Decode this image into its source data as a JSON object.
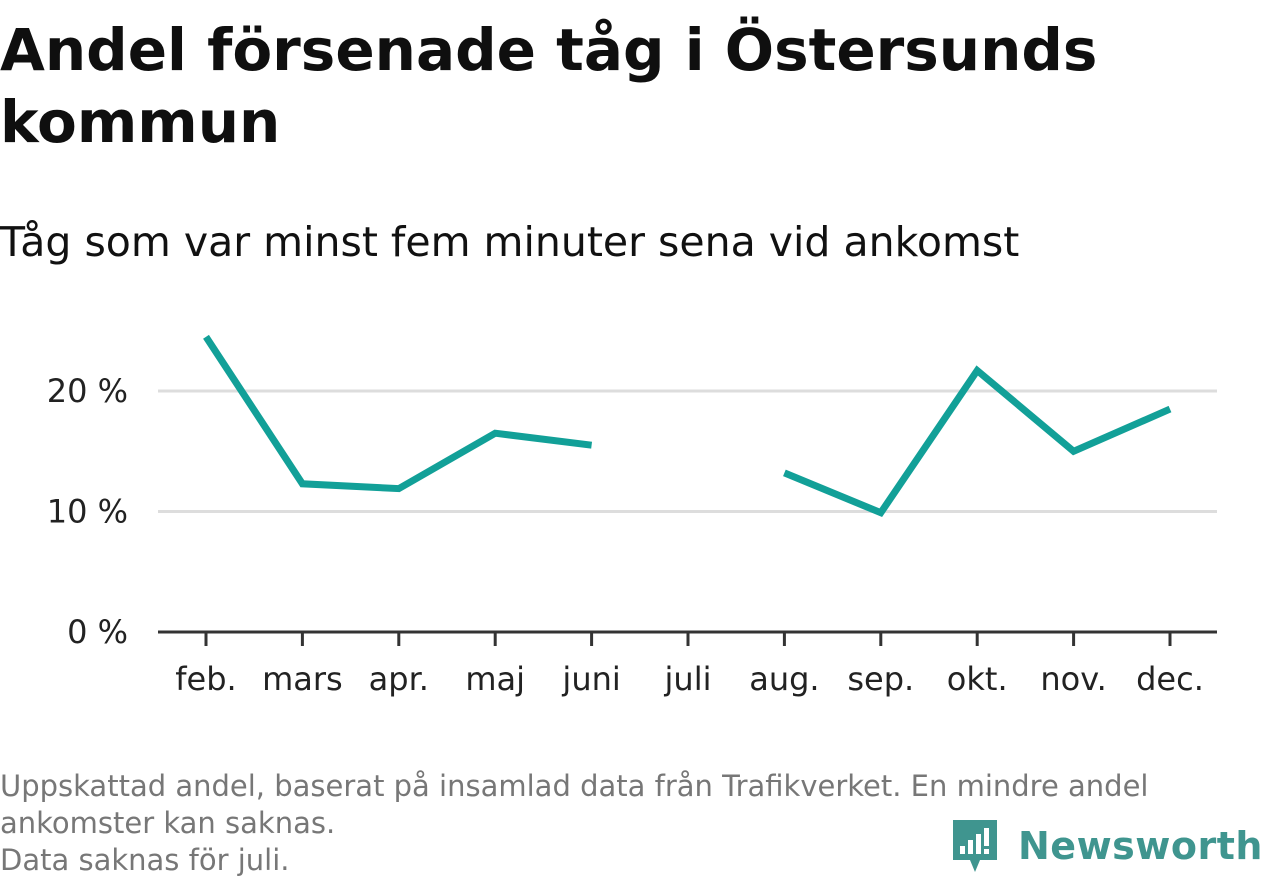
{
  "header": {
    "title": "Andel försenade tåg i Östersunds kommun",
    "subtitle": "Tåg som var minst fem minuter sena vid ankomst"
  },
  "footer": {
    "note_lines": [
      "Uppskattad andel, baserat på insamlad data från Trafikverket. En mindre andel",
      "ankomster kan saknas.",
      "Data saknas för juli."
    ],
    "brand": "Newsworthy",
    "brand_icon": "bar-chart-speech-bubble-icon"
  },
  "colors": {
    "line": "#12a098",
    "grid": "#dddddd",
    "axis": "#333333",
    "brand": "#3f958f"
  },
  "chart_data": {
    "type": "line",
    "title": "Andel försenade tåg i Östersunds kommun",
    "subtitle": "Tåg som var minst fem minuter sena vid ankomst",
    "categories": [
      "feb.",
      "mars",
      "apr.",
      "maj",
      "juni",
      "juli",
      "aug.",
      "sep.",
      "okt.",
      "nov.",
      "dec."
    ],
    "series": [
      {
        "values": [
          24.5,
          12.3,
          11.9,
          16.5,
          15.5,
          null,
          13.2,
          9.9,
          21.7,
          15.0,
          18.5
        ]
      }
    ],
    "yticks": [
      0,
      10,
      20
    ],
    "ytick_labels": [
      "0 %",
      "10 %",
      "20 %"
    ],
    "ylim": [
      0,
      26
    ],
    "grid": true,
    "xlabel": "",
    "ylabel": ""
  }
}
